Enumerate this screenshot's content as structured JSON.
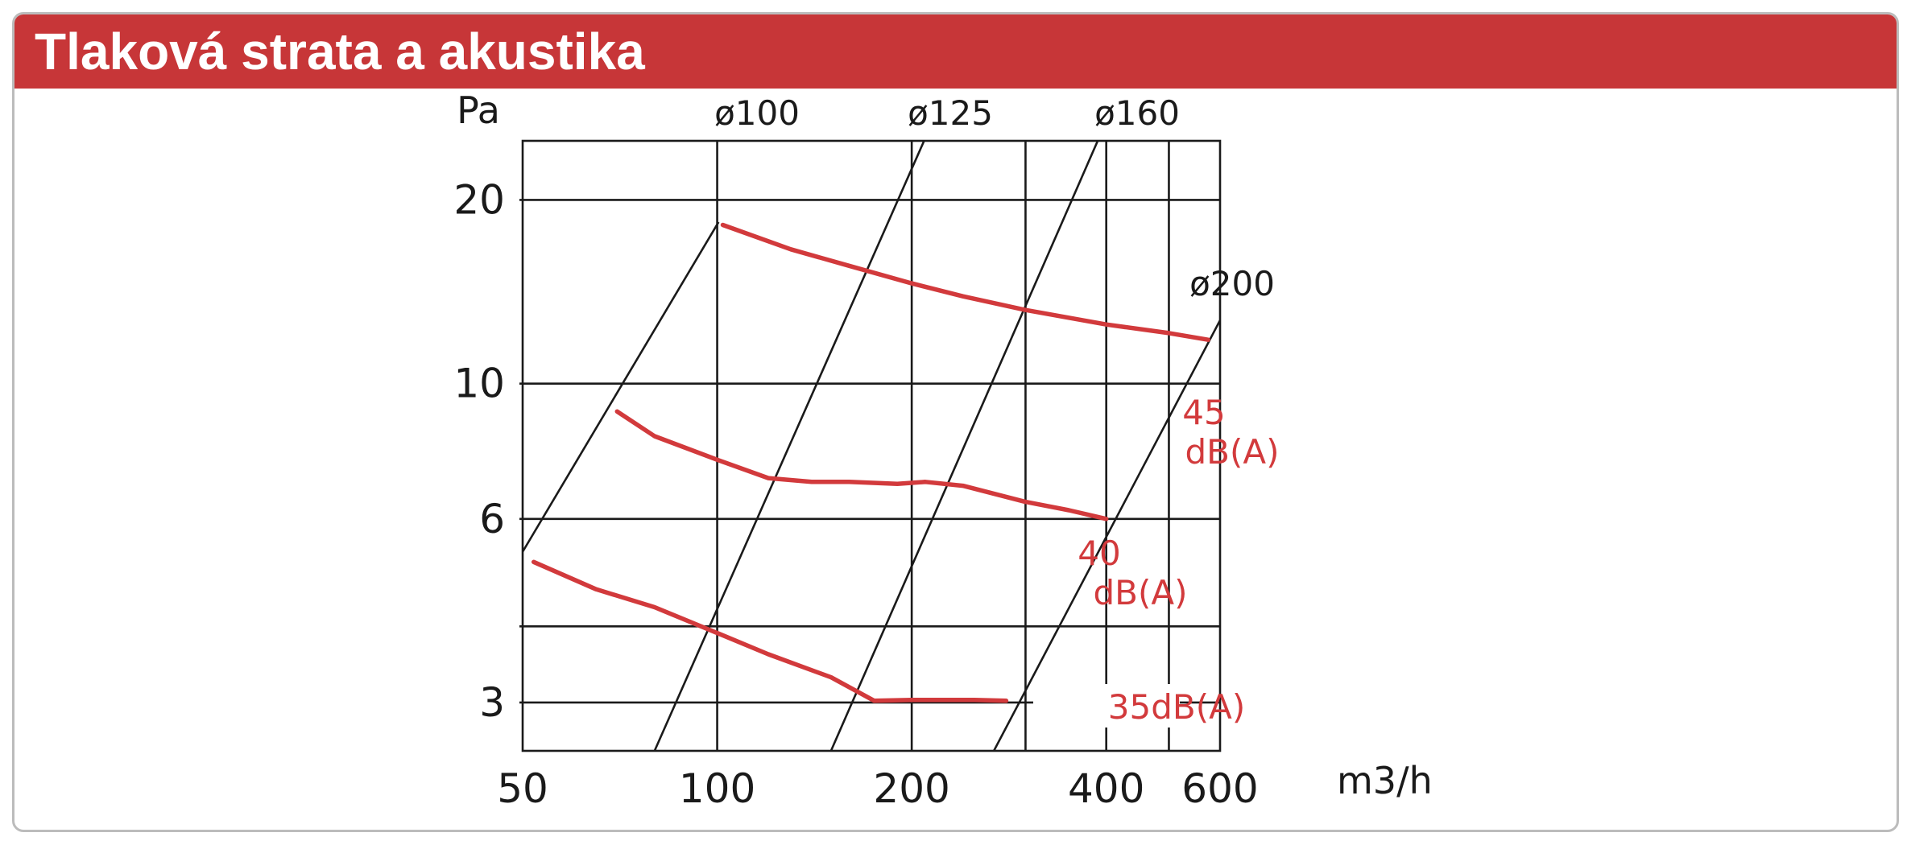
{
  "title": "Tlaková strata a akustika",
  "colors": {
    "header": "#c73638",
    "curve": "#d23a3c",
    "grid": "#1a1a1a"
  },
  "chart_data": {
    "type": "line",
    "x_scale": "log",
    "y_scale": "log",
    "xlim": [
      50,
      600
    ],
    "ylim": [
      2.5,
      25
    ],
    "xlabel": "m3/h",
    "ylabel": "Pa",
    "x_ticks": [
      50,
      100,
      200,
      400,
      600
    ],
    "x_tick_labels": [
      "50",
      "100",
      "200",
      "400",
      "600"
    ],
    "x_minor_grid": [
      300,
      500
    ],
    "y_ticks": [
      3,
      6,
      10,
      20
    ],
    "y_tick_labels": [
      "3",
      "6",
      "10",
      "20"
    ],
    "y_minor_grid": [
      4
    ],
    "grid": true,
    "duct_lines": [
      {
        "name": "ø100",
        "points": [
          [
            50,
            5.3
          ],
          [
            100.5,
            18.4
          ]
        ]
      },
      {
        "name": "ø125",
        "points": [
          [
            80,
            2.5
          ],
          [
            209,
            25
          ]
        ]
      },
      {
        "name": "ø160",
        "points": [
          [
            150,
            2.5
          ],
          [
            388,
            25
          ]
        ]
      },
      {
        "name": "ø200",
        "points": [
          [
            268,
            2.5
          ],
          [
            600,
            12.7
          ]
        ]
      }
    ],
    "series": [
      {
        "name": "45 dB(A)",
        "label_lines": [
          "45",
          "dB(A)"
        ],
        "x": [
          102,
          130,
          160,
          200,
          240,
          300,
          400,
          500,
          575
        ],
        "y": [
          18.2,
          16.6,
          15.6,
          14.6,
          13.9,
          13.2,
          12.5,
          12.1,
          11.8
        ]
      },
      {
        "name": "40 dB(A)",
        "label_lines": [
          "40",
          "dB(A)"
        ],
        "x": [
          70,
          80,
          100,
          120,
          140,
          160,
          190,
          210,
          240,
          300,
          350,
          400
        ],
        "y": [
          9.0,
          8.2,
          7.5,
          7.0,
          6.9,
          6.9,
          6.85,
          6.9,
          6.8,
          6.4,
          6.2,
          6.0
        ]
      },
      {
        "name": "35dB(A)",
        "label_lines": [
          "35dB(A)"
        ],
        "x": [
          52,
          65,
          80,
          100,
          120,
          150,
          175,
          200,
          250,
          280
        ],
        "y": [
          5.1,
          4.6,
          4.3,
          3.9,
          3.6,
          3.3,
          3.02,
          3.03,
          3.03,
          3.02
        ]
      }
    ]
  }
}
